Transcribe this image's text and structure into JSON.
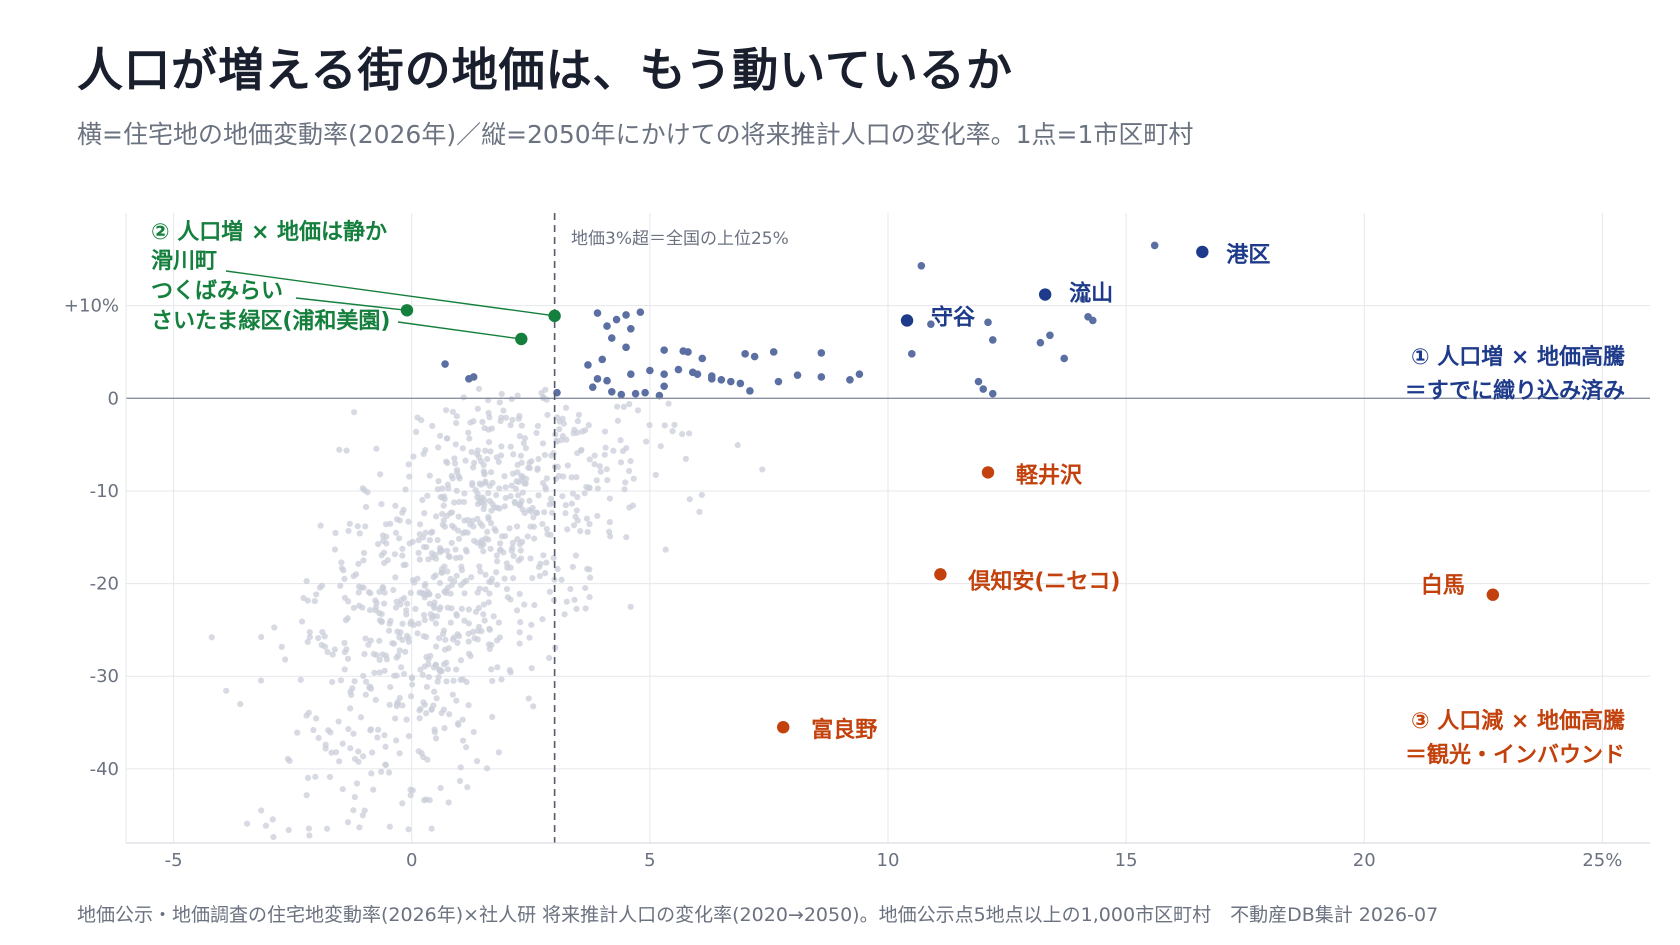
{
  "header": {
    "title": "人口が増える街の地価は、もう動いているか",
    "subtitle": "横=住宅地の地価変動率(2026年)／縦=2050年にかけての将来推計人口の変化率。1点=1市区町村"
  },
  "footer": {
    "source": "地価公示・地価調査の住宅地変動率(2026年)×社人研 将来推計人口の変化率(2020→2050)。地価公示点5地点以上の1,000市区町村　不動産DB集計 2026-07"
  },
  "colors": {
    "background_points": "#c9ced8",
    "quadrant1_points": "#5b6fa3",
    "highlight_blue": "#1e3a8a",
    "highlight_green": "#15803d",
    "highlight_orange": "#c2410c",
    "grid": "#e5e7eb",
    "zero_line": "#8a90a4"
  },
  "chart_data": {
    "type": "scatter",
    "xlim": [
      -6,
      26
    ],
    "ylim": [
      -48,
      20
    ],
    "x_ticks": [
      -5,
      0,
      5,
      10,
      15,
      20,
      25
    ],
    "x_tick_labels": [
      "-5",
      "0",
      "5",
      "10",
      "15",
      "20",
      "25%"
    ],
    "y_ticks": [
      10,
      0,
      -10,
      -20,
      -30,
      -40
    ],
    "y_tick_labels": [
      "+10%",
      "0",
      "-10",
      "-20",
      "-30",
      "-40"
    ],
    "grid": true,
    "threshold_x": 3,
    "threshold_label": "地価3%超＝全国の上位25%",
    "quadrant_labels": {
      "q1_line1": "① 人口増 × 地価高騰",
      "q1_line2": "＝すでに織り込み済み",
      "q2_line1": "② 人口増 × 地価は静か",
      "q3_line1": "③ 人口減 × 地価高騰",
      "q3_line2": "＝観光・インバウンド"
    },
    "highlighted": [
      {
        "name": "港区",
        "x": 16.6,
        "y": 15.8,
        "group": "blue"
      },
      {
        "name": "流山",
        "x": 13.3,
        "y": 11.2,
        "group": "blue"
      },
      {
        "name": "守谷",
        "x": 10.4,
        "y": 8.4,
        "group": "blue"
      },
      {
        "name": "滑川町",
        "x": 3.0,
        "y": 8.9,
        "group": "green"
      },
      {
        "name": "つくばみらい",
        "x": -0.1,
        "y": 9.5,
        "group": "green"
      },
      {
        "name": "さいたま緑区(浦和美園)",
        "x": 2.3,
        "y": 6.4,
        "group": "green"
      },
      {
        "name": "軽井沢",
        "x": 12.1,
        "y": -8.0,
        "group": "orange"
      },
      {
        "name": "倶知安(ニセコ)",
        "x": 11.1,
        "y": -19.0,
        "group": "orange"
      },
      {
        "name": "白馬",
        "x": 22.7,
        "y": -21.2,
        "group": "orange"
      },
      {
        "name": "富良野",
        "x": 7.8,
        "y": -35.5,
        "group": "orange"
      }
    ],
    "quadrant1_points": [
      [
        3.9,
        9.2
      ],
      [
        4.3,
        8.5
      ],
      [
        4.5,
        9.0
      ],
      [
        4.8,
        9.3
      ],
      [
        4.1,
        7.8
      ],
      [
        4.6,
        7.5
      ],
      [
        4.2,
        6.5
      ],
      [
        4.5,
        5.5
      ],
      [
        5.3,
        5.2
      ],
      [
        5.8,
        5.0
      ],
      [
        6.1,
        4.3
      ],
      [
        7.0,
        4.8
      ],
      [
        7.2,
        4.5
      ],
      [
        7.6,
        5.0
      ],
      [
        3.7,
        3.6
      ],
      [
        5.0,
        3.0
      ],
      [
        5.3,
        2.6
      ],
      [
        5.6,
        3.1
      ],
      [
        5.9,
        2.8
      ],
      [
        6.3,
        2.4
      ],
      [
        6.5,
        2.0
      ],
      [
        6.7,
        1.8
      ],
      [
        6.9,
        1.6
      ],
      [
        7.7,
        1.8
      ],
      [
        8.1,
        2.5
      ],
      [
        8.6,
        2.3
      ],
      [
        9.2,
        2.0
      ],
      [
        9.4,
        2.6
      ],
      [
        3.9,
        2.1
      ],
      [
        4.1,
        1.9
      ],
      [
        4.6,
        2.6
      ],
      [
        4.9,
        0.6
      ],
      [
        5.2,
        0.3
      ],
      [
        4.2,
        0.7
      ],
      [
        3.8,
        1.2
      ],
      [
        4.4,
        0.4
      ],
      [
        4.7,
        0.5
      ],
      [
        7.1,
        0.8
      ],
      [
        5.3,
        1.3
      ],
      [
        6.0,
        2.6
      ],
      [
        6.3,
        2.1
      ],
      [
        4.0,
        4.2
      ],
      [
        3.05,
        0.6
      ],
      [
        10.7,
        14.3
      ],
      [
        10.5,
        4.8
      ],
      [
        12.1,
        8.2
      ],
      [
        12.2,
        6.3
      ],
      [
        13.2,
        6.0
      ],
      [
        13.4,
        6.8
      ],
      [
        13.7,
        4.3
      ],
      [
        14.1,
        10.7
      ],
      [
        14.2,
        8.8
      ],
      [
        14.3,
        8.4
      ],
      [
        15.6,
        16.5
      ],
      [
        11.9,
        1.8
      ],
      [
        12.0,
        1.0
      ],
      [
        12.2,
        0.5
      ],
      [
        10.9,
        8.0
      ],
      [
        8.6,
        4.9
      ],
      [
        1.2,
        2.1
      ],
      [
        1.3,
        2.3
      ],
      [
        0.7,
        3.7
      ],
      [
        5.7,
        5.1
      ]
    ],
    "background_points_generated": {
      "count": 900,
      "description": "other municipalities"
    }
  }
}
